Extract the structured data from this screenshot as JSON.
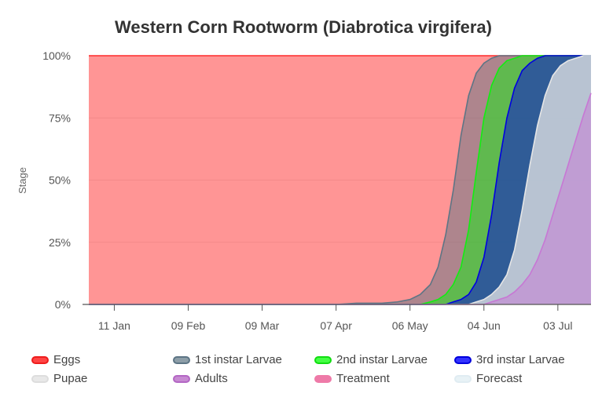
{
  "chart_data": {
    "type": "area",
    "title": "Western Corn Rootworm (Diabrotica virgifera)",
    "ylabel": "Stage",
    "xlabel": "",
    "x_start": "2024-01-01",
    "x_end": "2024-07-16",
    "ylim": [
      0,
      100
    ],
    "yticks": [
      "0%",
      "25%",
      "50%",
      "75%",
      "100%"
    ],
    "xticks": [
      {
        "date": "2024-01-11",
        "label": "11 Jan"
      },
      {
        "date": "2024-02-09",
        "label": "09 Feb"
      },
      {
        "date": "2024-03-09",
        "label": "09 Mar"
      },
      {
        "date": "2024-04-07",
        "label": "07 Apr"
      },
      {
        "date": "2024-05-06",
        "label": "06 May"
      },
      {
        "date": "2024-06-04",
        "label": "04 Jun"
      },
      {
        "date": "2024-07-03",
        "label": "03 Jul"
      }
    ],
    "grid": true,
    "legend_position": "bottom",
    "x": [
      "2024-01-01",
      "2024-04-07",
      "2024-04-15",
      "2024-04-25",
      "2024-05-01",
      "2024-05-06",
      "2024-05-10",
      "2024-05-14",
      "2024-05-17",
      "2024-05-20",
      "2024-05-23",
      "2024-05-26",
      "2024-05-29",
      "2024-06-01",
      "2024-06-04",
      "2024-06-07",
      "2024-06-10",
      "2024-06-13",
      "2024-06-16",
      "2024-06-19",
      "2024-06-22",
      "2024-06-25",
      "2024-06-28",
      "2024-07-01",
      "2024-07-04",
      "2024-07-07",
      "2024-07-10",
      "2024-07-13",
      "2024-07-16"
    ],
    "series": [
      {
        "name": "Adults",
        "color": "#c777d4",
        "values": [
          0,
          0,
          0,
          0,
          0,
          0,
          0,
          0,
          0,
          0,
          0,
          0,
          0,
          0,
          0,
          1,
          2,
          3,
          5,
          8,
          12,
          18,
          26,
          36,
          46,
          56,
          66,
          76,
          85
        ]
      },
      {
        "name": "Pupae",
        "color": "#e6e6e6",
        "values": [
          0,
          0,
          0,
          0,
          0,
          0,
          0,
          0,
          0,
          0,
          0,
          0,
          0,
          1,
          2,
          4,
          7,
          12,
          22,
          38,
          56,
          72,
          84,
          92,
          96,
          98,
          99,
          100,
          100
        ]
      },
      {
        "name": "3rd instar Larvae",
        "color": "#0000e0",
        "values": [
          0,
          0,
          0,
          0,
          0,
          0,
          0,
          0,
          0,
          0,
          1,
          2,
          4,
          9,
          19,
          36,
          57,
          75,
          87,
          94,
          97,
          99,
          100,
          100,
          100,
          100,
          100,
          100,
          100
        ]
      },
      {
        "name": "2nd instar Larvae",
        "color": "#11ee11",
        "values": [
          0,
          0,
          0,
          0,
          0,
          0,
          0,
          1,
          2,
          4,
          8,
          15,
          30,
          53,
          75,
          88,
          95,
          98,
          99,
          100,
          100,
          100,
          100,
          100,
          100,
          100,
          100,
          100,
          100
        ]
      },
      {
        "name": "1st instar Larvae",
        "color": "#5d7585",
        "values": [
          0,
          0,
          0.5,
          0.5,
          1,
          2,
          4,
          8,
          15,
          28,
          46,
          68,
          84,
          93,
          97,
          99,
          100,
          100,
          100,
          100,
          100,
          100,
          100,
          100,
          100,
          100,
          100,
          100,
          100
        ]
      },
      {
        "name": "Eggs",
        "color": "#ff2b2b",
        "values": [
          100,
          100,
          100,
          100,
          100,
          100,
          100,
          100,
          100,
          100,
          100,
          100,
          100,
          100,
          100,
          100,
          100,
          100,
          100,
          100,
          100,
          100,
          100,
          100,
          100,
          100,
          100,
          100,
          100
        ]
      }
    ],
    "legend": [
      {
        "name": "Eggs",
        "color": "#ee1c1c",
        "fill": "#ff4444",
        "row": 0,
        "col": 0
      },
      {
        "name": "1st instar Larvae",
        "color": "#5d7585",
        "fill": "#8d9ea8",
        "row": 0,
        "col": 1
      },
      {
        "name": "2nd instar Larvae",
        "color": "#11dd11",
        "fill": "#44ff44",
        "row": 0,
        "col": 2
      },
      {
        "name": "3rd instar Larvae",
        "color": "#0000dd",
        "fill": "#3333ff",
        "row": 0,
        "col": 3
      },
      {
        "name": "Pupae",
        "color": "#dddddd",
        "fill": "#e8e8e8",
        "row": 1,
        "col": 0
      },
      {
        "name": "Adults",
        "color": "#b366c4",
        "fill": "#c78ad2",
        "row": 1,
        "col": 1
      },
      {
        "name": "Treatment",
        "color": "#ee7aa8",
        "fill": "#ee7aa8",
        "row": 1,
        "col": 2
      },
      {
        "name": "Forecast",
        "color": "#e0ecf2",
        "fill": "#e8f2f6",
        "row": 1,
        "col": 3
      }
    ]
  }
}
